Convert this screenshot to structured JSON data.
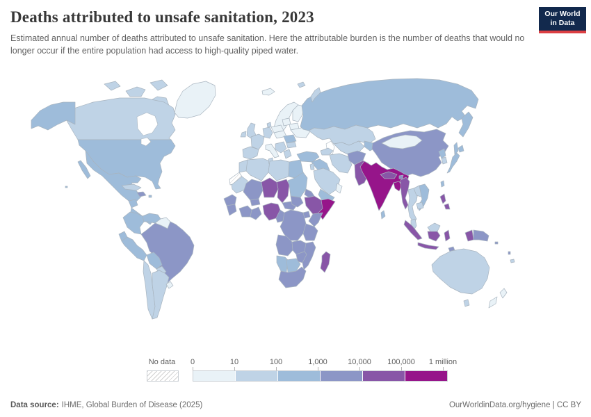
{
  "header": {
    "title": "Deaths attributed to unsafe sanitation, 2023",
    "subtitle": "Estimated annual number of deaths attributed to unsafe sanitation. Here the attributable burden is the number of deaths that would no longer occur if the entire population had access to high-quality piped water."
  },
  "logo": {
    "line1": "Our World",
    "line2": "in Data",
    "bg_color": "#12294d",
    "accent_color": "#dc3f43"
  },
  "legend": {
    "no_data_label": "No data",
    "tick_labels": [
      "0",
      "10",
      "100",
      "1,000",
      "10,000",
      "100,000",
      "1 million"
    ]
  },
  "footer": {
    "source_label": "Data source:",
    "source_value": "IHME, Global Burden of Disease (2025)",
    "right_text": "OurWorldinData.org/hygiene | CC BY"
  },
  "chart_data": {
    "type": "choropleth",
    "title": "Deaths attributed to unsafe sanitation",
    "year": "2023",
    "unit": "deaths",
    "scale": "logarithmic bins",
    "bin_edges": [
      "0",
      "10",
      "100",
      "1,000",
      "10,000",
      "100,000",
      "1 million"
    ],
    "bin_colors": [
      "#e9f2f7",
      "#bfd3e6",
      "#9ebcda",
      "#8c96c6",
      "#8856a7",
      "#96158a"
    ],
    "no_data_style": "diagonal-hatch",
    "countries": [
      {
        "id": "greenland",
        "bin": 0
      },
      {
        "id": "canada",
        "bin": 1
      },
      {
        "id": "united-states",
        "bin": 2
      },
      {
        "id": "mexico",
        "bin": 2
      },
      {
        "id": "central-america",
        "bin": 2
      },
      {
        "id": "cuba",
        "bin": 1
      },
      {
        "id": "haiti-dr",
        "bin": 3
      },
      {
        "id": "caribbean-islands",
        "bin": 2
      },
      {
        "id": "colombia",
        "bin": 2
      },
      {
        "id": "venezuela",
        "bin": 2
      },
      {
        "id": "guyanas",
        "bin": 0
      },
      {
        "id": "brazil",
        "bin": 3
      },
      {
        "id": "ecuador",
        "bin": 2
      },
      {
        "id": "peru",
        "bin": 2
      },
      {
        "id": "bolivia",
        "bin": 2
      },
      {
        "id": "paraguay",
        "bin": 1
      },
      {
        "id": "chile",
        "bin": 1
      },
      {
        "id": "argentina",
        "bin": 1
      },
      {
        "id": "uruguay",
        "bin": 0
      },
      {
        "id": "iceland",
        "bin": 0
      },
      {
        "id": "united-kingdom",
        "bin": 1
      },
      {
        "id": "ireland",
        "bin": 1
      },
      {
        "id": "norway-sweden",
        "bin": 0
      },
      {
        "id": "finland",
        "bin": 0
      },
      {
        "id": "denmark",
        "bin": 1
      },
      {
        "id": "germany",
        "bin": 1
      },
      {
        "id": "france",
        "bin": 1
      },
      {
        "id": "spain-portugal",
        "bin": 1
      },
      {
        "id": "italy",
        "bin": 0
      },
      {
        "id": "poland",
        "bin": 0
      },
      {
        "id": "central-europe",
        "bin": 0
      },
      {
        "id": "balkans",
        "bin": 1
      },
      {
        "id": "romania",
        "bin": 2
      },
      {
        "id": "bulgaria",
        "bin": 1
      },
      {
        "id": "greece",
        "bin": 1
      },
      {
        "id": "baltics",
        "bin": 0
      },
      {
        "id": "belarus",
        "bin": 0
      },
      {
        "id": "ukraine",
        "bin": 0
      },
      {
        "id": "russia",
        "bin": 2
      },
      {
        "id": "arctic-islands",
        "bin": 1
      },
      {
        "id": "kazakhstan",
        "bin": 1
      },
      {
        "id": "central-asia",
        "bin": 1
      },
      {
        "id": "kyrgyzstan-tajikistan",
        "bin": 2
      },
      {
        "id": "caucasus",
        "bin": 1
      },
      {
        "id": "turkey",
        "bin": 2
      },
      {
        "id": "syria-iraq",
        "bin": 2
      },
      {
        "id": "israel-jordan",
        "bin": 1
      },
      {
        "id": "iran",
        "bin": 1
      },
      {
        "id": "afghanistan",
        "bin": 3
      },
      {
        "id": "pakistan",
        "bin": 4
      },
      {
        "id": "saudi-arabia",
        "bin": 1
      },
      {
        "id": "yemen",
        "bin": 2
      },
      {
        "id": "oman",
        "bin": 0
      },
      {
        "id": "morocco",
        "bin": 1
      },
      {
        "id": "western-sahara",
        "bin": -1
      },
      {
        "id": "algeria",
        "bin": 1
      },
      {
        "id": "tunisia",
        "bin": 1
      },
      {
        "id": "libya",
        "bin": 1
      },
      {
        "id": "egypt",
        "bin": 2
      },
      {
        "id": "mauritania",
        "bin": 1
      },
      {
        "id": "senegal",
        "bin": 3
      },
      {
        "id": "guinea",
        "bin": 3
      },
      {
        "id": "mali",
        "bin": 3
      },
      {
        "id": "burkina-faso",
        "bin": 3
      },
      {
        "id": "cote-divoire",
        "bin": 3
      },
      {
        "id": "ghana",
        "bin": 3
      },
      {
        "id": "niger",
        "bin": 4
      },
      {
        "id": "nigeria",
        "bin": 4
      },
      {
        "id": "chad",
        "bin": 4
      },
      {
        "id": "cameroon",
        "bin": 3
      },
      {
        "id": "central-african-republic",
        "bin": 3
      },
      {
        "id": "sudan",
        "bin": 2
      },
      {
        "id": "south-sudan",
        "bin": 3
      },
      {
        "id": "eritrea",
        "bin": 3
      },
      {
        "id": "ethiopia",
        "bin": 4
      },
      {
        "id": "somalia",
        "bin": 5
      },
      {
        "id": "kenya",
        "bin": 3
      },
      {
        "id": "uganda",
        "bin": 3
      },
      {
        "id": "drc",
        "bin": 3
      },
      {
        "id": "tanzania",
        "bin": 3
      },
      {
        "id": "angola",
        "bin": 3
      },
      {
        "id": "zambia",
        "bin": 3
      },
      {
        "id": "mozambique",
        "bin": 3
      },
      {
        "id": "zimbabwe",
        "bin": 3
      },
      {
        "id": "namibia",
        "bin": 2
      },
      {
        "id": "botswana",
        "bin": 2
      },
      {
        "id": "south-africa",
        "bin": 3
      },
      {
        "id": "madagascar",
        "bin": 4
      },
      {
        "id": "china",
        "bin": 3
      },
      {
        "id": "mongolia",
        "bin": 0
      },
      {
        "id": "north-korea",
        "bin": 2
      },
      {
        "id": "south-korea",
        "bin": 1
      },
      {
        "id": "japan",
        "bin": 2
      },
      {
        "id": "taiwan",
        "bin": 2
      },
      {
        "id": "india",
        "bin": 5
      },
      {
        "id": "nepal",
        "bin": 4
      },
      {
        "id": "bhutan",
        "bin": 3
      },
      {
        "id": "bangladesh",
        "bin": 5
      },
      {
        "id": "sri-lanka",
        "bin": 2
      },
      {
        "id": "myanmar",
        "bin": 4
      },
      {
        "id": "thailand",
        "bin": 1
      },
      {
        "id": "laos",
        "bin": 1
      },
      {
        "id": "vietnam",
        "bin": 2
      },
      {
        "id": "cambodia",
        "bin": 1
      },
      {
        "id": "malaysia",
        "bin": 1
      },
      {
        "id": "indonesia",
        "bin": 4
      },
      {
        "id": "timor-leste",
        "bin": 3
      },
      {
        "id": "philippines",
        "bin": 4
      },
      {
        "id": "papua-new-guinea",
        "bin": 3
      },
      {
        "id": "australia",
        "bin": 1
      },
      {
        "id": "new-zealand",
        "bin": 0
      },
      {
        "id": "solomon-islands",
        "bin": 3
      },
      {
        "id": "vanuatu",
        "bin": 3
      },
      {
        "id": "fiji",
        "bin": 2
      },
      {
        "id": "new-caledonia",
        "bin": 1
      }
    ]
  }
}
